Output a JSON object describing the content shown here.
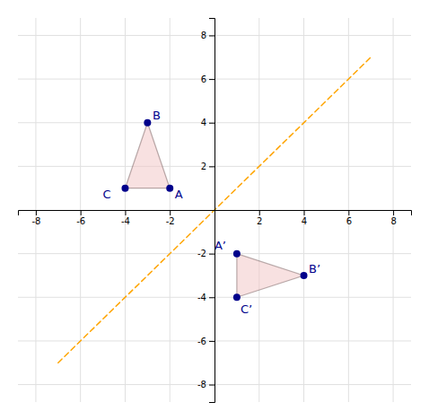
{
  "chart_data": {
    "type": "scatter",
    "series": [
      {
        "type": "line",
        "x": [
          -7,
          7
        ],
        "values": [
          -7,
          7
        ],
        "color": "#FFA500",
        "line_style": "dashed"
      },
      {
        "type": "polygon",
        "x": [
          -2,
          -3,
          -4
        ],
        "values": [
          1,
          4,
          1
        ],
        "color": "#f2c4c4"
      },
      {
        "type": "polygon",
        "x": [
          1,
          4,
          1
        ],
        "values": [
          -2,
          -3,
          -4
        ],
        "color": "#f2c4c4"
      },
      {
        "type": "scatter",
        "x": [
          -2,
          -3,
          -4,
          1,
          4,
          1
        ],
        "values": [
          1,
          4,
          1,
          -2,
          -3,
          -4
        ],
        "labels": [
          "A",
          "B",
          "C",
          "A’",
          "B’",
          "C’"
        ],
        "color": "#00008B",
        "marker": "circle"
      }
    ],
    "xlim": [
      -8.8,
      8.8
    ],
    "ylim": [
      -8.8,
      8.8
    ],
    "xticks": [
      -8,
      -6,
      -4,
      -2,
      2,
      4,
      6,
      8
    ],
    "yticks": [
      -8,
      -6,
      -4,
      -2,
      2,
      4,
      6,
      8
    ],
    "grid": true
  }
}
